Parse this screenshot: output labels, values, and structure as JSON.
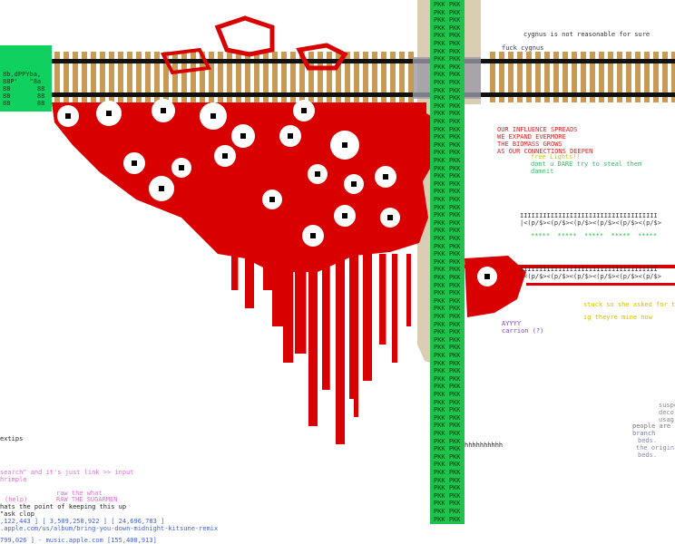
{
  "canvas_texts": {
    "cygnus_note": "cygnus is not reasonable for sure",
    "fuck_cygnus": "fuck cygnus",
    "influence": [
      "OUR INFLUENCE SPREADS",
      "WE EXPAND EVERMORE",
      "THE BIOMASS GROWS",
      "AS OUR CONNECTIONS DEEPEN"
    ],
    "lights": [
      "free Lights!!",
      "dont u DARE try to steal them",
      "damnit"
    ],
    "pattern_rows": [
      "IIIIIIIIIIIIIIIIIIIIIIIIIIIIIIIIIIII",
      "|<(p/$><(p/$><(p/$><(p/$><(p/$><(p/$>",
      "*****  *****  *****  *****  *****"
    ],
    "stuck": [
      "stuck so she asked for th",
      "ig theyre mine now"
    ],
    "carrion": [
      "AYYYY",
      "carrion (?)"
    ],
    "pkk": "PKK PKK",
    "hhh": "hhhhhhhhhh",
    "ascii": [
      "8b,dPPYba,",
      "88P'   \"8a",
      "88       88",
      "88       88",
      "88       88"
    ],
    "right_notes": [
      "suspe",
      "deco",
      "usag",
      "people are",
      "branch",
      "beds.",
      "the origin",
      "beds."
    ],
    "bottom_left": [
      "extips",
      "search\" and it's just link >> input",
      "hrimple",
      "raw the what",
      "(help)",
      "RAW THE SUGARMEN",
      "hats the point of keeping this up",
      "\"ask clop",
      ",122,443 ] [ 3,509,250,922 ] [ 24,696,783 ]",
      ".apple.com/us/album/bring-you-down-midnight-kitsune-remix",
      "799,026 ] - music.apple.com [155,408,913]"
    ]
  }
}
